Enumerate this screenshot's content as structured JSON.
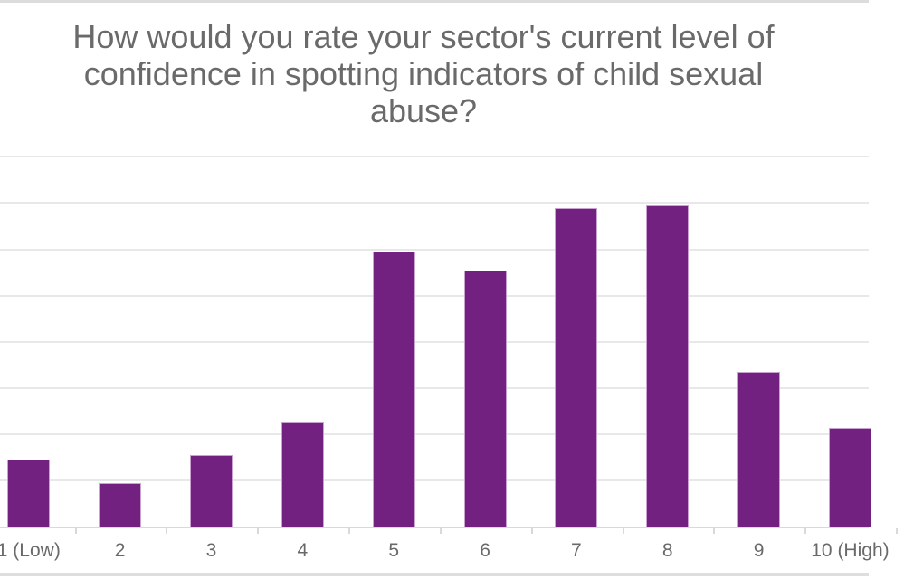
{
  "title": {
    "text": "How would you rate your sector's current level of confidence in spotting indicators of child sexual abuse?",
    "color": "#6a6a6a"
  },
  "chart_data": {
    "type": "bar",
    "title": "How would you rate your sector's current level of confidence in spotting indicators of child sexual abuse?",
    "categories": [
      "1 (Low)",
      "2",
      "3",
      "4",
      "5",
      "6",
      "7",
      "8",
      "9",
      "10 (High)"
    ],
    "values": [
      1.45,
      0.95,
      1.55,
      2.25,
      5.95,
      5.55,
      6.9,
      6.95,
      3.35,
      2.15
    ],
    "xlabel": "",
    "ylabel": "",
    "ylim": [
      0,
      8
    ],
    "gridline_interval": 1,
    "grid": true,
    "y_axis_labels_visible": false,
    "legend": "none",
    "bar_color": "#722180",
    "bar_stroke_color": "#c9a2cf",
    "gridline_color": "#e8e8e8",
    "axis_line_color": "#d9d9d9",
    "label_color": "#696969"
  }
}
